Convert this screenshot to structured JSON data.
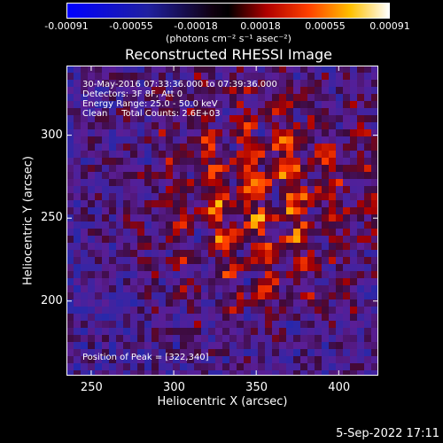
{
  "chart_data": {
    "type": "heatmap",
    "title": "Reconstructed RHESSI Image",
    "xlabel": "Heliocentric X (arcsec)",
    "ylabel": "Heliocentric Y (arcsec)",
    "xlim": [
      235,
      424
    ],
    "ylim": [
      155,
      342
    ],
    "x_ticks": [
      250,
      300,
      350,
      400
    ],
    "y_ticks": [
      200,
      250,
      300
    ],
    "peak": [
      322,
      340
    ],
    "colorbar": {
      "range": [
        -0.00091,
        0.00091
      ],
      "tick_labels": [
        "-0.00091",
        "-0.00055",
        "-0.00018",
        "0.00018",
        "0.00055",
        "0.00091"
      ],
      "units": "(photons cm⁻² s⁻¹ asec⁻²)"
    },
    "colors": {
      "background": "#000000",
      "colorbar_low": "#0000ff",
      "colorbar_mid": "#000000",
      "colorbar_high": "#ffffff"
    }
  },
  "annotations": {
    "time": "30-May-2016 07:33:36.000 to 07:39:36.000",
    "detectors": "Detectors: 3F 8F, Att 0",
    "energy": "Energy Range: 25.0 - 50.0 keV",
    "method": "Clean     Total Counts: 2.6E+03",
    "peak": "Position of Peak = [322,340]"
  },
  "footer": {
    "date": "5-Sep-2022 17:11"
  }
}
